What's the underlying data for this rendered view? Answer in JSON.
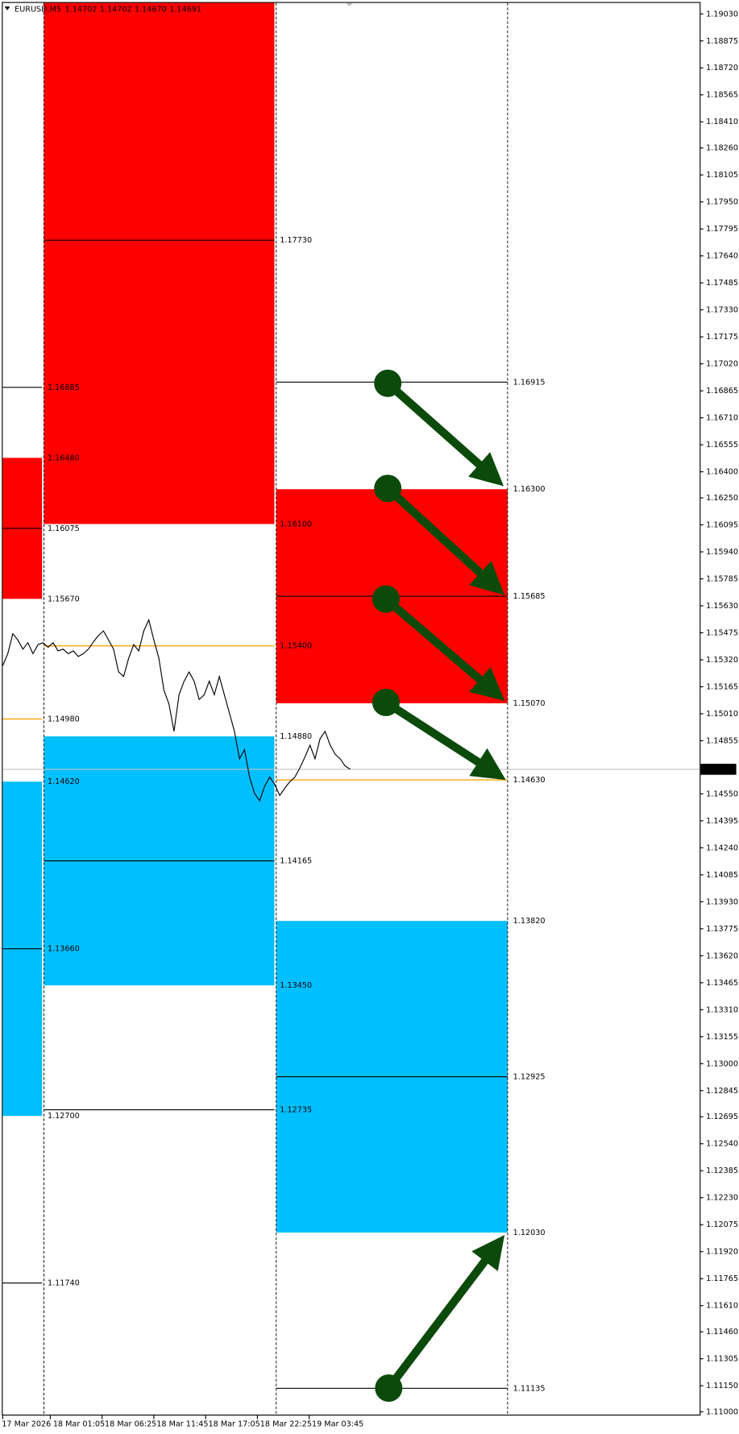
{
  "chart_data": {
    "type": "line",
    "title": "EURUSD,M5",
    "ohlc": [
      "1.14702",
      "1.14702",
      "1.14670",
      "1.14691"
    ],
    "ylim": [
      1.11,
      1.1903
    ],
    "yticks": [
      {
        "value": 1.1903,
        "label": "1.19030"
      },
      1.18875,
      {
        "value": 1.1872,
        "label": "1.18720"
      },
      1.18565,
      {
        "value": 1.1841,
        "label": "1.18410"
      },
      {
        "value": 1.1826,
        "label": "1.18260"
      },
      1.18105,
      {
        "value": 1.1795,
        "label": "1.17950"
      },
      1.17795,
      {
        "value": 1.1764,
        "label": "1.17640"
      },
      1.17485,
      {
        "value": 1.1733,
        "label": "1.17330"
      },
      1.17175,
      {
        "value": 1.1702,
        "label": "1.17020"
      },
      1.16865,
      {
        "value": 1.1671,
        "label": "1.16710"
      },
      1.16555,
      {
        "value": 1.164,
        "label": "1.16400"
      },
      {
        "value": 1.1625,
        "label": "1.16250"
      },
      1.16095,
      {
        "value": 1.1594,
        "label": "1.15940"
      },
      1.15785,
      {
        "value": 1.1563,
        "label": "1.15630"
      },
      1.15475,
      {
        "value": 1.1532,
        "label": "1.15320"
      },
      1.15165,
      {
        "value": 1.1501,
        "label": "1.15010"
      },
      1.14855,
      {
        "value": 1.1455,
        "label": "1.14550"
      },
      1.14395,
      {
        "value": 1.1424,
        "label": "1.14240"
      },
      1.14085,
      {
        "value": 1.1393,
        "label": "1.13930"
      },
      1.13775,
      {
        "value": 1.1362,
        "label": "1.13620"
      },
      1.13465,
      {
        "value": 1.1331,
        "label": "1.13310"
      },
      1.13155,
      {
        "value": 1.13,
        "label": "1.13000"
      },
      1.12845,
      1.12695,
      {
        "value": 1.1254,
        "label": "1.12540"
      },
      1.12385,
      {
        "value": 1.1223,
        "label": "1.12230"
      },
      1.12075,
      {
        "value": 1.1192,
        "label": "1.11920"
      },
      1.11765,
      {
        "value": 1.1161,
        "label": "1.11610"
      },
      {
        "value": 1.1146,
        "label": "1.11460"
      },
      1.11305,
      {
        "value": 1.1115,
        "label": "1.11150"
      },
      {
        "value": 1.11,
        "label": "1.11000"
      }
    ],
    "x_labels": [
      "17 Mar 2026",
      "18 Mar 01:05",
      "18 Mar 06:25",
      "18 Mar 11:45",
      "18 Mar 17:05",
      "18 Mar 22:25",
      "19 Mar 03:45"
    ],
    "last": 1.14691,
    "colors": {
      "price": "#000000",
      "supply": "#ff0000",
      "demand": "#00bfff",
      "pivot": "#ffa500",
      "level": "#000000",
      "label": "#1c1ca0"
    },
    "price": [
      1.15287,
      1.15355,
      1.1547,
      1.15434,
      1.15381,
      1.15418,
      1.15355,
      1.15407,
      1.15418,
      1.15392,
      1.15418,
      1.15371,
      1.15381,
      1.15355,
      1.15371,
      1.15339,
      1.15355,
      1.15381,
      1.15423,
      1.1546,
      1.15486,
      1.15434,
      1.15381,
      1.1525,
      1.15224,
      1.15329,
      1.15407,
      1.15371,
      1.15486,
      1.15549,
      1.15434,
      1.15329,
      1.15145,
      1.15066,
      1.14909,
      1.15119,
      1.15197,
      1.1525,
      1.15197,
      1.15092,
      1.15119,
      1.15197,
      1.15119,
      1.15224,
      1.15119,
      1.15014,
      1.14909,
      1.14751,
      1.14804,
      1.14646,
      1.14552,
      1.1451,
      1.14594,
      1.14646,
      1.14604,
      1.14541,
      1.14583,
      1.1462,
      1.14646,
      1.14699,
      1.14762,
      1.1483,
      1.14751,
      1.14867,
      1.14909,
      1.1483,
      1.14777,
      1.14751,
      1.14709,
      1.14691
    ],
    "columns": [
      {
        "supply": {
          "top": {
            "value": 1.1648,
            "label": "1.16480"
          },
          "bottom": {
            "value": 1.1567,
            "label": "1.15670"
          }
        },
        "demand": {
          "top": {
            "value": 1.1462,
            "label": "1.14620"
          },
          "bottom": {
            "value": 1.127,
            "label": "1.12700"
          }
        },
        "lines": [
          1.16885,
          1.16075,
          {
            "value": 1.1366,
            "label": "1.13660"
          },
          {
            "value": 1.1174,
            "label": "1.11740"
          }
        ],
        "pivot": {
          "value": 1.1498,
          "label": "1.14980"
        }
      },
      {
        "supply": {
          "bottom": {
            "value": 1.161,
            "label": "1.16100"
          }
        },
        "demand": {
          "top": {
            "value": 1.1488,
            "label": "1.14880"
          },
          "bottom": {
            "value": 1.1345,
            "label": "1.13450"
          }
        },
        "lines": [
          {
            "value": 1.1773,
            "label": "1.17730"
          },
          1.14165,
          1.12735
        ],
        "pivot": {
          "value": 1.154,
          "label": "1.15400"
        }
      },
      {
        "supply": {
          "top": {
            "value": 1.163,
            "label": "1.16300"
          },
          "bottom": {
            "value": 1.1507,
            "label": "1.15070"
          }
        },
        "demand": {
          "top": {
            "value": 1.1382,
            "label": "1.13820"
          },
          "bottom": {
            "value": 1.1203,
            "label": "1.12030"
          }
        },
        "lines": [
          1.16915,
          1.15685,
          1.12925,
          1.11135
        ],
        "pivot": {
          "value": 1.1463,
          "label": "1.14630"
        }
      }
    ]
  }
}
